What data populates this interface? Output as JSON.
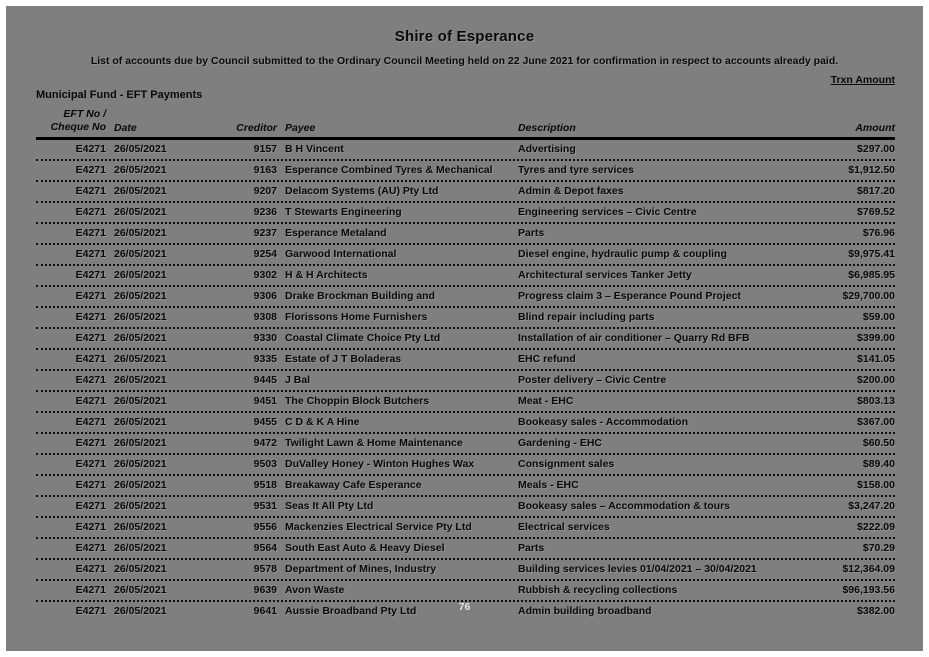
{
  "page": {
    "title": "Shire of Esperance",
    "subtitle": "List of accounts due by Council submitted to the Ordinary Council Meeting held on 22 June 2021 for confirmation in respect to accounts already paid.",
    "trxn_label": "Trxn Amount",
    "section_heading": "Municipal Fund - EFT Payments",
    "page_number": "76"
  },
  "table": {
    "headers": {
      "eft_line1": "EFT No /",
      "eft_line2": "Cheque No",
      "date": "Date",
      "creditor": "Creditor",
      "payee": "Payee",
      "description": "Description",
      "amount": "Amount"
    },
    "rows": [
      {
        "eft": "E4271",
        "date": "26/05/2021",
        "creditor": "9157",
        "payee": "B H Vincent",
        "description": "Advertising",
        "amount": "$297.00"
      },
      {
        "eft": "E4271",
        "date": "26/05/2021",
        "creditor": "9163",
        "payee": "Esperance Combined Tyres & Mechanical",
        "description": "Tyres and tyre services",
        "amount": "$1,912.50"
      },
      {
        "eft": "E4271",
        "date": "26/05/2021",
        "creditor": "9207",
        "payee": "Delacom Systems (AU) Pty Ltd",
        "description": "Admin & Depot faxes",
        "amount": "$817.20"
      },
      {
        "eft": "E4271",
        "date": "26/05/2021",
        "creditor": "9236",
        "payee": "T Stewarts Engineering",
        "description": "Engineering services – Civic Centre",
        "amount": "$769.52"
      },
      {
        "eft": "E4271",
        "date": "26/05/2021",
        "creditor": "9237",
        "payee": "Esperance Metaland",
        "description": "Parts",
        "amount": "$76.96"
      },
      {
        "eft": "E4271",
        "date": "26/05/2021",
        "creditor": "9254",
        "payee": "Garwood International",
        "description": "Diesel engine, hydraulic pump & coupling",
        "amount": "$9,975.41"
      },
      {
        "eft": "E4271",
        "date": "26/05/2021",
        "creditor": "9302",
        "payee": "H & H Architects",
        "description": "Architectural services Tanker Jetty",
        "amount": "$6,985.95"
      },
      {
        "eft": "E4271",
        "date": "26/05/2021",
        "creditor": "9306",
        "payee": "Drake Brockman Building and",
        "description": "Progress claim 3 – Esperance Pound Project",
        "amount": "$29,700.00"
      },
      {
        "eft": "E4271",
        "date": "26/05/2021",
        "creditor": "9308",
        "payee": "Florissons Home Furnishers",
        "description": "Blind repair including parts",
        "amount": "$59.00"
      },
      {
        "eft": "E4271",
        "date": "26/05/2021",
        "creditor": "9330",
        "payee": "Coastal Climate Choice Pty Ltd",
        "description": "Installation of air conditioner – Quarry Rd BFB",
        "amount": "$399.00"
      },
      {
        "eft": "E4271",
        "date": "26/05/2021",
        "creditor": "9335",
        "payee": "Estate of J T Boladeras",
        "description": "EHC refund",
        "amount": "$141.05"
      },
      {
        "eft": "E4271",
        "date": "26/05/2021",
        "creditor": "9445",
        "payee": "J Bal",
        "description": "Poster delivery – Civic Centre",
        "amount": "$200.00"
      },
      {
        "eft": "E4271",
        "date": "26/05/2021",
        "creditor": "9451",
        "payee": "The Choppin Block Butchers",
        "description": "Meat - EHC",
        "amount": "$803.13"
      },
      {
        "eft": "E4271",
        "date": "26/05/2021",
        "creditor": "9455",
        "payee": "C D & K A Hine",
        "description": "Bookeasy sales - Accommodation",
        "amount": "$367.00"
      },
      {
        "eft": "E4271",
        "date": "26/05/2021",
        "creditor": "9472",
        "payee": "Twilight Lawn & Home Maintenance",
        "description": "Gardening - EHC",
        "amount": "$60.50"
      },
      {
        "eft": "E4271",
        "date": "26/05/2021",
        "creditor": "9503",
        "payee": "DuValley Honey - Winton Hughes Wax",
        "description": "Consignment sales",
        "amount": "$89.40"
      },
      {
        "eft": "E4271",
        "date": "26/05/2021",
        "creditor": "9518",
        "payee": "Breakaway Cafe Esperance",
        "description": "Meals - EHC",
        "amount": "$158.00"
      },
      {
        "eft": "E4271",
        "date": "26/05/2021",
        "creditor": "9531",
        "payee": "Seas It All Pty Ltd",
        "description": "Bookeasy sales – Accommodation & tours",
        "amount": "$3,247.20"
      },
      {
        "eft": "E4271",
        "date": "26/05/2021",
        "creditor": "9556",
        "payee": "Mackenzies Electrical Service Pty Ltd",
        "description": "Electrical services",
        "amount": "$222.09"
      },
      {
        "eft": "E4271",
        "date": "26/05/2021",
        "creditor": "9564",
        "payee": "South East Auto & Heavy Diesel",
        "description": "Parts",
        "amount": "$70.29"
      },
      {
        "eft": "E4271",
        "date": "26/05/2021",
        "creditor": "9578",
        "payee": "Department of Mines, Industry",
        "description": "Building services levies 01/04/2021 – 30/04/2021",
        "amount": "$12,364.09"
      },
      {
        "eft": "E4271",
        "date": "26/05/2021",
        "creditor": "9639",
        "payee": "Avon Waste",
        "description": "Rubbish & recycling collections",
        "amount": "$96,193.56"
      },
      {
        "eft": "E4271",
        "date": "26/05/2021",
        "creditor": "9641",
        "payee": "Aussie Broadband Pty Ltd",
        "description": "Admin building broadband",
        "amount": "$382.00"
      }
    ]
  }
}
